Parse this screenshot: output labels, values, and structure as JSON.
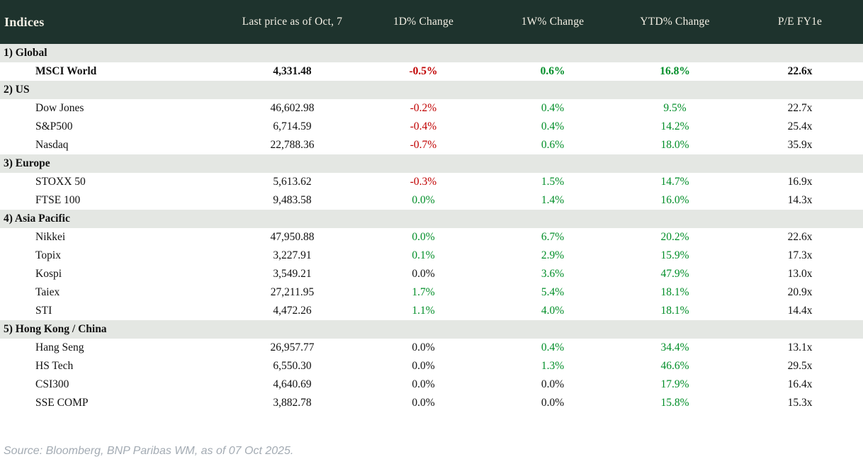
{
  "colors": {
    "header_bg": "#1e332d",
    "header_text": "#f3efe4",
    "section_row_bg": "#e4e7e3",
    "positive": "#008e28",
    "negative": "#c00000",
    "neutral": "#111111",
    "source_text": "#a3abb3"
  },
  "table": {
    "title": "Indices",
    "columns": [
      "Last price as of Oct, 7",
      "1D% Change",
      "1W% Change",
      "YTD% Change",
      "P/E FY1e"
    ],
    "sections": [
      {
        "label": "1) Global",
        "rows": [
          {
            "name": "MSCI World",
            "bold": true,
            "cells": [
              {
                "text": "4,331.48",
                "tone": "neutral"
              },
              {
                "text": "-0.5%",
                "tone": "negative"
              },
              {
                "text": "0.6%",
                "tone": "positive"
              },
              {
                "text": "16.8%",
                "tone": "positive"
              },
              {
                "text": "22.6x",
                "tone": "neutral"
              }
            ]
          }
        ]
      },
      {
        "label": "2) US",
        "rows": [
          {
            "name": "Dow Jones",
            "bold": false,
            "cells": [
              {
                "text": "46,602.98",
                "tone": "neutral"
              },
              {
                "text": "-0.2%",
                "tone": "negative"
              },
              {
                "text": "0.4%",
                "tone": "positive"
              },
              {
                "text": "9.5%",
                "tone": "positive"
              },
              {
                "text": "22.7x",
                "tone": "neutral"
              }
            ]
          },
          {
            "name": "S&P500",
            "bold": false,
            "cells": [
              {
                "text": "6,714.59",
                "tone": "neutral"
              },
              {
                "text": "-0.4%",
                "tone": "negative"
              },
              {
                "text": "0.4%",
                "tone": "positive"
              },
              {
                "text": "14.2%",
                "tone": "positive"
              },
              {
                "text": "25.4x",
                "tone": "neutral"
              }
            ]
          },
          {
            "name": "Nasdaq",
            "bold": false,
            "cells": [
              {
                "text": "22,788.36",
                "tone": "neutral"
              },
              {
                "text": "-0.7%",
                "tone": "negative"
              },
              {
                "text": "0.6%",
                "tone": "positive"
              },
              {
                "text": "18.0%",
                "tone": "positive"
              },
              {
                "text": "35.9x",
                "tone": "neutral"
              }
            ]
          }
        ]
      },
      {
        "label": "3) Europe",
        "rows": [
          {
            "name": "STOXX 50",
            "bold": false,
            "cells": [
              {
                "text": "5,613.62",
                "tone": "neutral"
              },
              {
                "text": "-0.3%",
                "tone": "negative"
              },
              {
                "text": "1.5%",
                "tone": "positive"
              },
              {
                "text": "14.7%",
                "tone": "positive"
              },
              {
                "text": "16.9x",
                "tone": "neutral"
              }
            ]
          },
          {
            "name": "FTSE 100",
            "bold": false,
            "cells": [
              {
                "text": "9,483.58",
                "tone": "neutral"
              },
              {
                "text": "0.0%",
                "tone": "positive"
              },
              {
                "text": "1.4%",
                "tone": "positive"
              },
              {
                "text": "16.0%",
                "tone": "positive"
              },
              {
                "text": "14.3x",
                "tone": "neutral"
              }
            ]
          }
        ]
      },
      {
        "label": "4) Asia Pacific",
        "rows": [
          {
            "name": "Nikkei",
            "bold": false,
            "cells": [
              {
                "text": "47,950.88",
                "tone": "neutral"
              },
              {
                "text": "0.0%",
                "tone": "positive"
              },
              {
                "text": "6.7%",
                "tone": "positive"
              },
              {
                "text": "20.2%",
                "tone": "positive"
              },
              {
                "text": "22.6x",
                "tone": "neutral"
              }
            ]
          },
          {
            "name": "Topix",
            "bold": false,
            "cells": [
              {
                "text": "3,227.91",
                "tone": "neutral"
              },
              {
                "text": "0.1%",
                "tone": "positive"
              },
              {
                "text": "2.9%",
                "tone": "positive"
              },
              {
                "text": "15.9%",
                "tone": "positive"
              },
              {
                "text": "17.3x",
                "tone": "neutral"
              }
            ]
          },
          {
            "name": "Kospi",
            "bold": false,
            "cells": [
              {
                "text": "3,549.21",
                "tone": "neutral"
              },
              {
                "text": "0.0%",
                "tone": "neutral"
              },
              {
                "text": "3.6%",
                "tone": "positive"
              },
              {
                "text": "47.9%",
                "tone": "positive"
              },
              {
                "text": "13.0x",
                "tone": "neutral"
              }
            ]
          },
          {
            "name": "Taiex",
            "bold": false,
            "cells": [
              {
                "text": "27,211.95",
                "tone": "neutral"
              },
              {
                "text": "1.7%",
                "tone": "positive"
              },
              {
                "text": "5.4%",
                "tone": "positive"
              },
              {
                "text": "18.1%",
                "tone": "positive"
              },
              {
                "text": "20.9x",
                "tone": "neutral"
              }
            ]
          },
          {
            "name": "STI",
            "bold": false,
            "cells": [
              {
                "text": "4,472.26",
                "tone": "neutral"
              },
              {
                "text": "1.1%",
                "tone": "positive"
              },
              {
                "text": "4.0%",
                "tone": "positive"
              },
              {
                "text": "18.1%",
                "tone": "positive"
              },
              {
                "text": "14.4x",
                "tone": "neutral"
              }
            ]
          }
        ]
      },
      {
        "label": "5) Hong Kong / China",
        "rows": [
          {
            "name": "Hang Seng",
            "bold": false,
            "cells": [
              {
                "text": "26,957.77",
                "tone": "neutral"
              },
              {
                "text": "0.0%",
                "tone": "neutral"
              },
              {
                "text": "0.4%",
                "tone": "positive"
              },
              {
                "text": "34.4%",
                "tone": "positive"
              },
              {
                "text": "13.1x",
                "tone": "neutral"
              }
            ]
          },
          {
            "name": "HS Tech",
            "bold": false,
            "cells": [
              {
                "text": "6,550.30",
                "tone": "neutral"
              },
              {
                "text": "0.0%",
                "tone": "neutral"
              },
              {
                "text": "1.3%",
                "tone": "positive"
              },
              {
                "text": "46.6%",
                "tone": "positive"
              },
              {
                "text": "29.5x",
                "tone": "neutral"
              }
            ]
          },
          {
            "name": "CSI300",
            "bold": false,
            "cells": [
              {
                "text": "4,640.69",
                "tone": "neutral"
              },
              {
                "text": "0.0%",
                "tone": "neutral"
              },
              {
                "text": "0.0%",
                "tone": "neutral"
              },
              {
                "text": "17.9%",
                "tone": "positive"
              },
              {
                "text": "16.4x",
                "tone": "neutral"
              }
            ]
          },
          {
            "name": "SSE COMP",
            "bold": false,
            "cells": [
              {
                "text": "3,882.78",
                "tone": "neutral"
              },
              {
                "text": "0.0%",
                "tone": "neutral"
              },
              {
                "text": "0.0%",
                "tone": "neutral"
              },
              {
                "text": "15.8%",
                "tone": "positive"
              },
              {
                "text": "15.3x",
                "tone": "neutral"
              }
            ]
          }
        ]
      }
    ]
  },
  "footer": {
    "source_note": "Source: Bloomberg, BNP Paribas WM, as of 07 Oct 2025."
  }
}
